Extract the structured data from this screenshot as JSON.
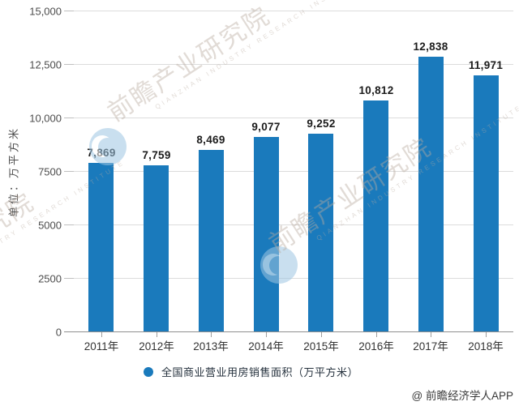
{
  "chart_data": {
    "type": "bar",
    "title": "",
    "ylabel": "单位：万平方米",
    "categories": [
      "2011年",
      "2012年",
      "2013年",
      "2014年",
      "2015年",
      "2016年",
      "2017年",
      "2018年"
    ],
    "values": [
      7869,
      7759,
      8469,
      9077,
      9252,
      10812,
      12838,
      11971
    ],
    "value_labels": [
      "7,869",
      "7,759",
      "8,469",
      "9,077",
      "9,252",
      "10,812",
      "12,838",
      "11,971"
    ],
    "ylim": [
      0,
      15000
    ],
    "ytick_values": [
      0,
      2500,
      5000,
      7500,
      10000,
      12500,
      15000
    ],
    "ytick_labels": [
      "0",
      "2500",
      "5000",
      "7500",
      "10,000",
      "12,500",
      "15,000"
    ],
    "grid": true,
    "legend_position": "bottom",
    "legend": "全国商业营业用房销售面积（万平方米）",
    "bar_color": "#1a7abc"
  },
  "watermark": {
    "text": "前瞻产业研究院",
    "subtext": "QIANZHAN INDUSTRY RESEARCH INSTITUTE"
  },
  "credit": {
    "text": "@ 前瞻经济学人APP"
  }
}
